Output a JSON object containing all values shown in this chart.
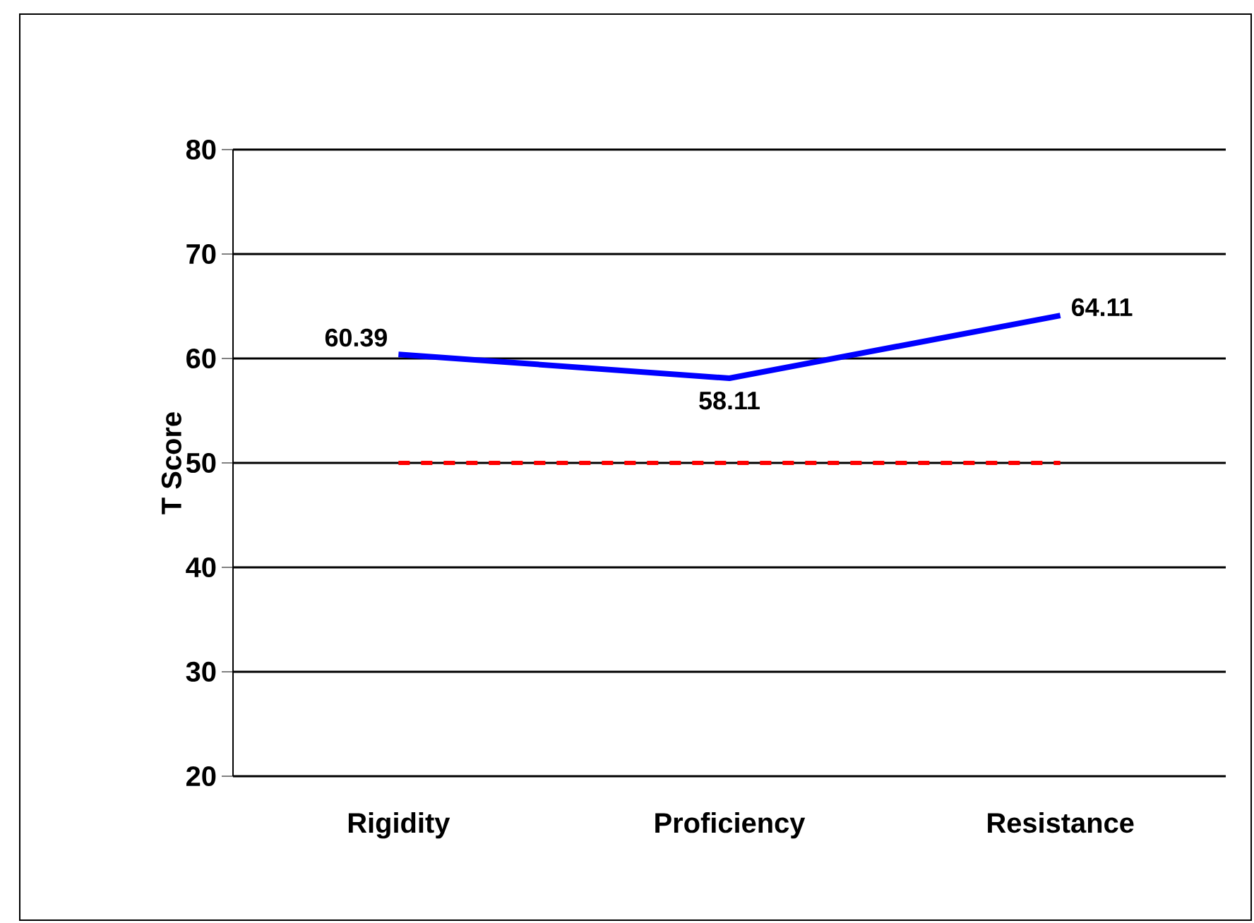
{
  "chart_data": {
    "type": "line",
    "ylabel": "T Score",
    "categories": [
      "Rigidity",
      "Proficiency",
      "Resistance"
    ],
    "series": [
      {
        "color": "#0000ff",
        "values": [
          60.39,
          58.11,
          64.11
        ],
        "value_labels": [
          "60.39",
          "58.11",
          "64.11"
        ],
        "line_style": "solid"
      },
      {
        "color": "#ff0000",
        "values": [
          50,
          50,
          50
        ],
        "line_style": "dashed"
      }
    ],
    "ylim": [
      20,
      80
    ],
    "yticks": [
      20,
      30,
      40,
      50,
      60,
      70,
      80
    ],
    "grid": "y",
    "marker": "none"
  }
}
